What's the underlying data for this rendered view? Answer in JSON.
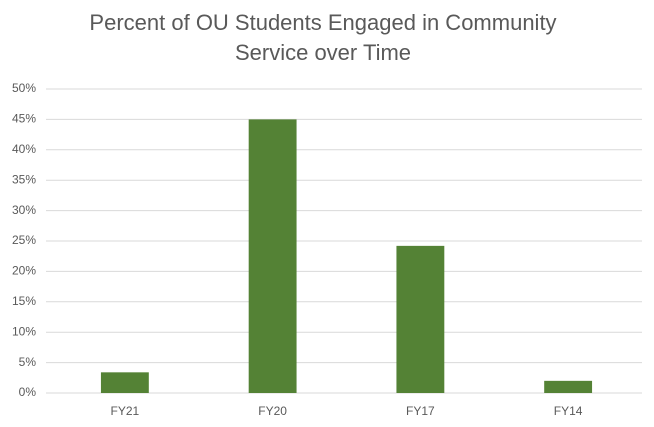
{
  "chart_data": {
    "type": "bar",
    "title": "Percent of OU Students Engaged in Community Service over Time",
    "categories": [
      "FY21",
      "FY20",
      "FY17",
      "FY14"
    ],
    "values": [
      3.4,
      45,
      24.2,
      2.0
    ],
    "color": "#548235",
    "ylim": [
      0,
      50
    ],
    "yticks": [
      {
        "value": 0,
        "label": "0%"
      },
      {
        "value": 5,
        "label": "5%"
      },
      {
        "value": 10,
        "label": "10%"
      },
      {
        "value": 15,
        "label": "15%"
      },
      {
        "value": 20,
        "label": "20%"
      },
      {
        "value": 25,
        "label": "25%"
      },
      {
        "value": 30,
        "label": "30%"
      },
      {
        "value": 35,
        "label": "35%"
      },
      {
        "value": 40,
        "label": "40%"
      },
      {
        "value": 45,
        "label": "45%"
      },
      {
        "value": 50,
        "label": "50%"
      }
    ],
    "grid": true
  }
}
